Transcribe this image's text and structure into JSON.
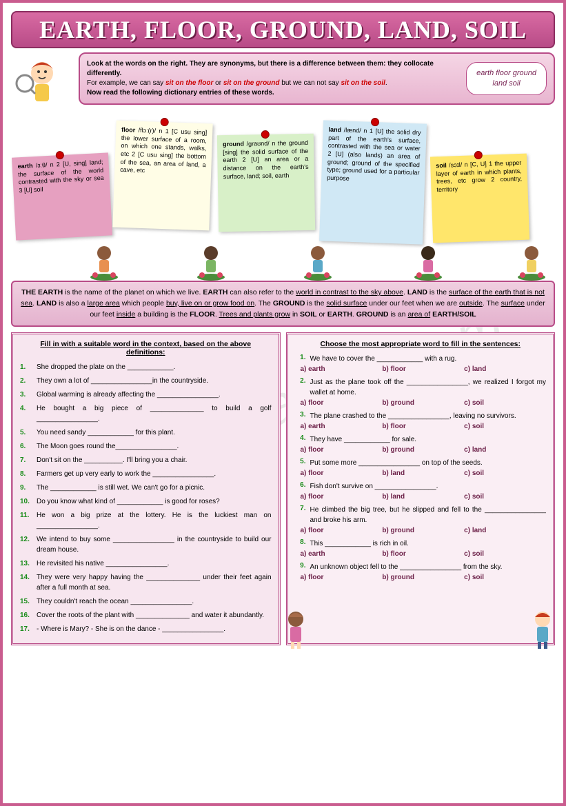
{
  "title": "EARTH, FLOOR, GROUND, LAND, SOIL",
  "watermark": "ESLprintables.com",
  "intro": {
    "line1": "Look at the words on the right. They are synonyms, but there is a difference between them: they collocate differently.",
    "line2a": "For example, we can say ",
    "ex1": "sit on the floor",
    "line2b": " or ",
    "ex2": "sit on the ground",
    "line2c": " but we can not say ",
    "ex3": "sit on the soil",
    "line3": "Now read the following dictionary entries of these words.",
    "bubble": "earth    floor    ground\nland       soil"
  },
  "defs": {
    "earth": "earth /ɜːθ/ n 2 [U, sing] land; the surface of the world contrasted with the sky or sea 3 [U] soil",
    "floor": "floor /flɔː(r)/ n 1 [C usu sing] the lower surface of a room, on which one stands, walks, etc 2 [C usu sing] the bottom of the sea, an area of land, a cave, etc",
    "ground": "ground /graʊnd/ n the ground [sing] the solid surface of the earth 2 [U] an area or a distance on the earth's surface, land; soil, earth",
    "land": "land /lænd/ n 1 [U] the solid dry part of the earth's surface, contrasted with the sea or water 2 [U] (also lands) an area of ground; ground of the specified type; ground used for a particular purpose",
    "soil": "soil /sɔɪl/ n [C, U] 1 the upper layer of earth in which plants, trees, etc grow 2 country, territory"
  },
  "explain": "THE EARTH is the name of the planet on which we live. EARTH can also refer to the world in contrast to the sky above. LAND is the surface of the earth that is not sea. LAND is also a large area which people buy, live on or grow food on. The GROUND is the solid surface under our feet when we are outside. The surface under our feet inside a building is the FLOOR. Trees and plants grow in SOIL or EARTH. GROUND is an area of EARTH/SOIL",
  "ex1": {
    "title": "Fill in with a suitable word in the context, based on the above definitions:",
    "items": [
      "She dropped the plate on the ____________.",
      "They own a lot of ________________in the countryside.",
      "Global warming is already affecting the ________________.",
      "He bought a big piece of ______________ to build a golf ________________.",
      "You need sandy ____________ for this plant.",
      "The Moon goes round the________________.",
      "Don't sit on the __________. I'll bring you a chair.",
      "Farmers get up very early to work the ________________.",
      "The ____________ is still wet. We can't go for a picnic.",
      "Do you know what kind of ____________ is good for roses?",
      "He won a big prize at the lottery. He is the luckiest man on ________________.",
      "We intend to buy some ________________ in the countryside to build our dream house.",
      "He revisited his native ________________.",
      "They were very happy having the ______________ under their feet again after a full month at sea.",
      "They couldn't reach the ocean ________________.",
      "Cover the roots of the plant with ______________ and water it abundantly.",
      "- Where is Mary? - She is on the dance - ________________."
    ]
  },
  "ex2": {
    "title": "Choose the most appropriate word to fill in the sentences:",
    "items": [
      {
        "q": "We have to cover the ____________ with a rug.",
        "a": "a) earth",
        "b": "b) floor",
        "c": "c) land"
      },
      {
        "q": "Just as the plane took off the ________________, we realized I forgot my wallet at home.",
        "a": "a) floor",
        "b": "b) ground",
        "c": "c) soil"
      },
      {
        "q": "The plane crashed to the ________________, leaving no survivors.",
        "a": "a) earth",
        "b": "b) floor",
        "c": "c) soil"
      },
      {
        "q": "They have ____________ for sale.",
        "a": "a) floor",
        "b": "b) ground",
        "c": "c) land"
      },
      {
        "q": "Put some more ________________ on top of the seeds.",
        "a": "a) floor",
        "b": "b) land",
        "c": "c) soil"
      },
      {
        "q": "Fish don't survive on ________________.",
        "a": "a) floor",
        "b": "b) land",
        "c": "c) soil"
      },
      {
        "q": "He climbed the big tree, but he slipped and fell to the ________________ and broke his arm.",
        "a": "a) floor",
        "b": "b) ground",
        "c": "c) land"
      },
      {
        "q": "This ____________ is rich in oil.",
        "a": "a) earth",
        "b": "b) floor",
        "c": "c) soil"
      },
      {
        "q": "An unknown object fell to the ________________ from the sky.",
        "a": "a) floor",
        "b": "b) ground",
        "c": "c) soil"
      }
    ]
  }
}
